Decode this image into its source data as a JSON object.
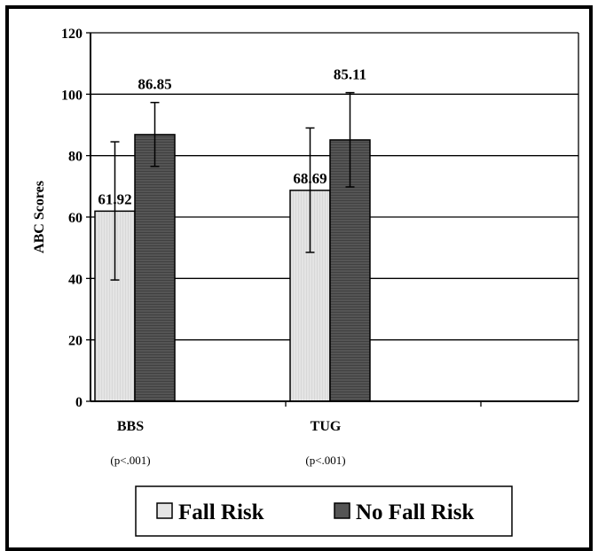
{
  "chart_data": {
    "type": "bar",
    "categories": [
      "BBS",
      "TUG"
    ],
    "category_notes": [
      "(p<.001)",
      "(p<.001)"
    ],
    "series": [
      {
        "name": "Fall Risk",
        "values": [
          61.92,
          68.69
        ],
        "value_labels": [
          "61.92",
          "68.69"
        ],
        "error_low": [
          39.5,
          48.5
        ],
        "error_high": [
          84.5,
          89.0
        ],
        "color": "#e4e4e4"
      },
      {
        "name": "No Fall Risk",
        "values": [
          86.85,
          85.11
        ],
        "value_labels": [
          "86.85",
          "85.11"
        ],
        "error_low": [
          76.5,
          69.8
        ],
        "error_high": [
          97.3,
          100.5
        ],
        "color": "#555555"
      }
    ],
    "ylabel": "ABC Scores",
    "xlabel": "",
    "ylim": [
      0,
      120
    ],
    "yticks": [
      "0",
      "20",
      "40",
      "60",
      "80",
      "100",
      "120"
    ],
    "grid": true,
    "legend_position": "bottom"
  }
}
